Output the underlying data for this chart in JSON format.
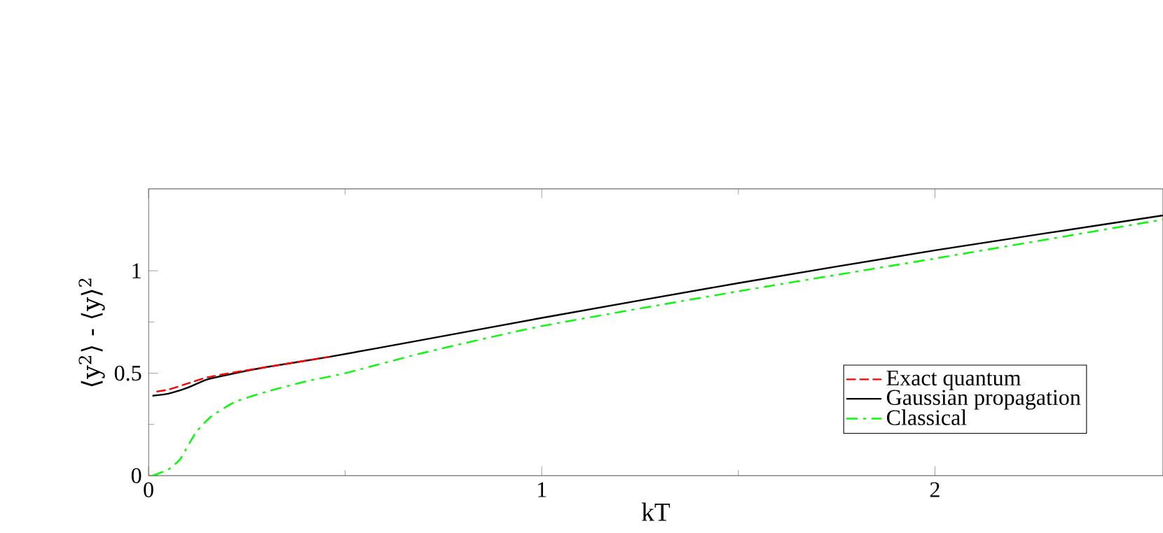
{
  "chart_data": {
    "type": "line",
    "xlabel": "kT",
    "ylabel": "⟨y$^{2}$⟩ - ⟨y⟩$^{2}$",
    "xlim": [
      0,
      2.58
    ],
    "ylim": [
      0,
      1.4
    ],
    "xticks": [
      0,
      1,
      2
    ],
    "yticks": [
      0,
      0.5,
      1
    ],
    "legend": "bottom right",
    "grid": false,
    "series": [
      {
        "name": "Exact quantum",
        "color": "#ff0000",
        "line_style": "dashed",
        "x": [
          0.02,
          0.05,
          0.1,
          0.15,
          0.22,
          0.3,
          0.46
        ],
        "values": [
          0.41,
          0.42,
          0.45,
          0.48,
          0.505,
          0.53,
          0.58
        ]
      },
      {
        "name": "Gaussian propagation",
        "color": "#000000",
        "line_style": "solid",
        "x": [
          0.01,
          0.05,
          0.1,
          0.15,
          0.22,
          0.3,
          0.46,
          0.69,
          1,
          1.5,
          2,
          2.58
        ],
        "values": [
          0.39,
          0.4,
          0.43,
          0.47,
          0.5,
          0.53,
          0.58,
          0.66,
          0.77,
          0.94,
          1.1,
          1.27
        ]
      },
      {
        "name": "Classical",
        "color": "#00ff00",
        "line_style": "dashdot",
        "x": [
          0.01,
          0.05,
          0.08,
          0.12,
          0.16,
          0.22,
          0.3,
          0.4,
          0.5,
          0.7,
          1,
          1.5,
          2,
          2.58
        ],
        "values": [
          0,
          0.03,
          0.08,
          0.21,
          0.29,
          0.36,
          0.41,
          0.46,
          0.5,
          0.6,
          0.73,
          0.9,
          1.06,
          1.25
        ]
      }
    ]
  }
}
